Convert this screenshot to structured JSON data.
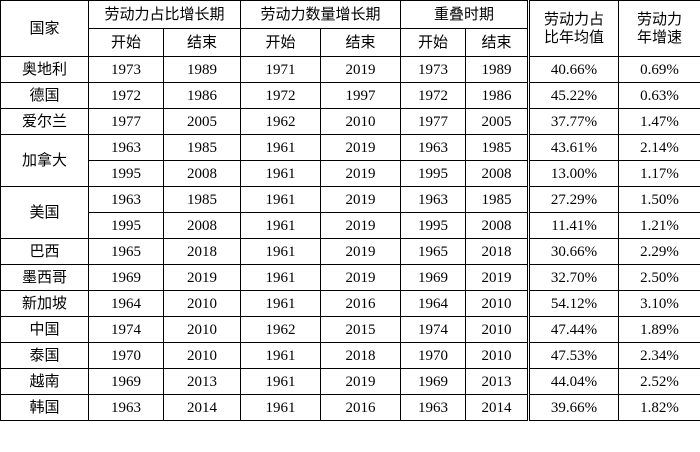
{
  "table": {
    "header": {
      "country": "国家",
      "groups": [
        "劳动力占比增长期",
        "劳动力数量增长期",
        "重叠时期"
      ],
      "sub": [
        "开始",
        "结束"
      ],
      "share_avg": "劳动力占比年均值",
      "growth": "劳动力年增速"
    },
    "groups": [
      {
        "country": "奥地利",
        "rows": [
          [
            "1973",
            "1989",
            "1971",
            "2019",
            "1973",
            "1989",
            "40.66%",
            "0.69%"
          ]
        ]
      },
      {
        "country": "德国",
        "rows": [
          [
            "1972",
            "1986",
            "1972",
            "1997",
            "1972",
            "1986",
            "45.22%",
            "0.63%"
          ]
        ]
      },
      {
        "country": "爱尔兰",
        "rows": [
          [
            "1977",
            "2005",
            "1962",
            "2010",
            "1977",
            "2005",
            "37.77%",
            "1.47%"
          ]
        ]
      },
      {
        "country": "加拿大",
        "rows": [
          [
            "1963",
            "1985",
            "1961",
            "2019",
            "1963",
            "1985",
            "43.61%",
            "2.14%"
          ],
          [
            "1995",
            "2008",
            "1961",
            "2019",
            "1995",
            "2008",
            "13.00%",
            "1.17%"
          ]
        ]
      },
      {
        "country": "美国",
        "rows": [
          [
            "1963",
            "1985",
            "1961",
            "2019",
            "1963",
            "1985",
            "27.29%",
            "1.50%"
          ],
          [
            "1995",
            "2008",
            "1961",
            "2019",
            "1995",
            "2008",
            "11.41%",
            "1.21%"
          ]
        ]
      },
      {
        "country": "巴西",
        "rows": [
          [
            "1965",
            "2018",
            "1961",
            "2019",
            "1965",
            "2018",
            "30.66%",
            "2.29%"
          ]
        ]
      },
      {
        "country": "墨西哥",
        "rows": [
          [
            "1969",
            "2019",
            "1961",
            "2019",
            "1969",
            "2019",
            "32.70%",
            "2.50%"
          ]
        ]
      },
      {
        "country": "新加坡",
        "rows": [
          [
            "1964",
            "2010",
            "1961",
            "2016",
            "1964",
            "2010",
            "54.12%",
            "3.10%"
          ]
        ]
      },
      {
        "country": "中国",
        "rows": [
          [
            "1974",
            "2010",
            "1962",
            "2015",
            "1974",
            "2010",
            "47.44%",
            "1.89%"
          ]
        ]
      },
      {
        "country": "泰国",
        "rows": [
          [
            "1970",
            "2010",
            "1961",
            "2018",
            "1970",
            "2010",
            "47.53%",
            "2.34%"
          ]
        ]
      },
      {
        "country": "越南",
        "rows": [
          [
            "1969",
            "2013",
            "1961",
            "2019",
            "1969",
            "2013",
            "44.04%",
            "2.52%"
          ]
        ]
      },
      {
        "country": "韩国",
        "rows": [
          [
            "1963",
            "2014",
            "1961",
            "2016",
            "1963",
            "2014",
            "39.66%",
            "1.82%"
          ]
        ]
      }
    ]
  }
}
